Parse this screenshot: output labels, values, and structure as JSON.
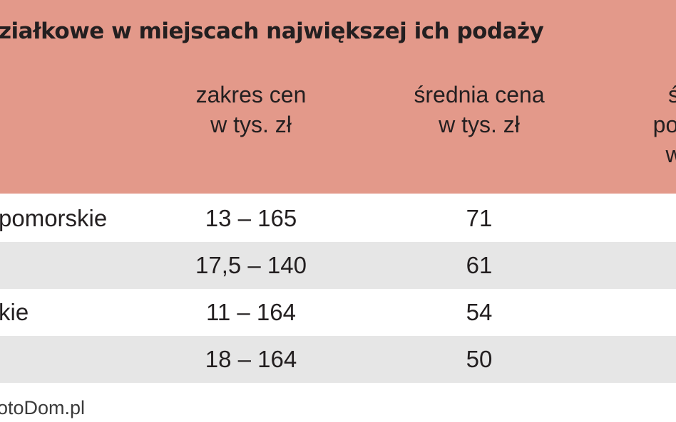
{
  "table": {
    "title": "ziałkowe w miejscach największej ich podaży",
    "headers": {
      "range": [
        "zakres cen",
        "w  tys. zł"
      ],
      "avg": [
        "średnia cena",
        "w tys. zł"
      ],
      "cut": [
        "ś",
        "pow",
        "w"
      ]
    },
    "rows": [
      {
        "region": "pomorskie",
        "range": "13 – 165",
        "avg": "71"
      },
      {
        "region": "",
        "range": "17,5 – 140",
        "avg": "61"
      },
      {
        "region": "kie",
        "range": "11 – 164",
        "avg": "54"
      },
      {
        "region": "",
        "range": "18 – 164",
        "avg": "50"
      }
    ],
    "source": "otoDom.pl"
  },
  "colors": {
    "header_bg": "#e3998a",
    "alt_row_bg": "#e6e6e6",
    "text": "#231f20"
  }
}
